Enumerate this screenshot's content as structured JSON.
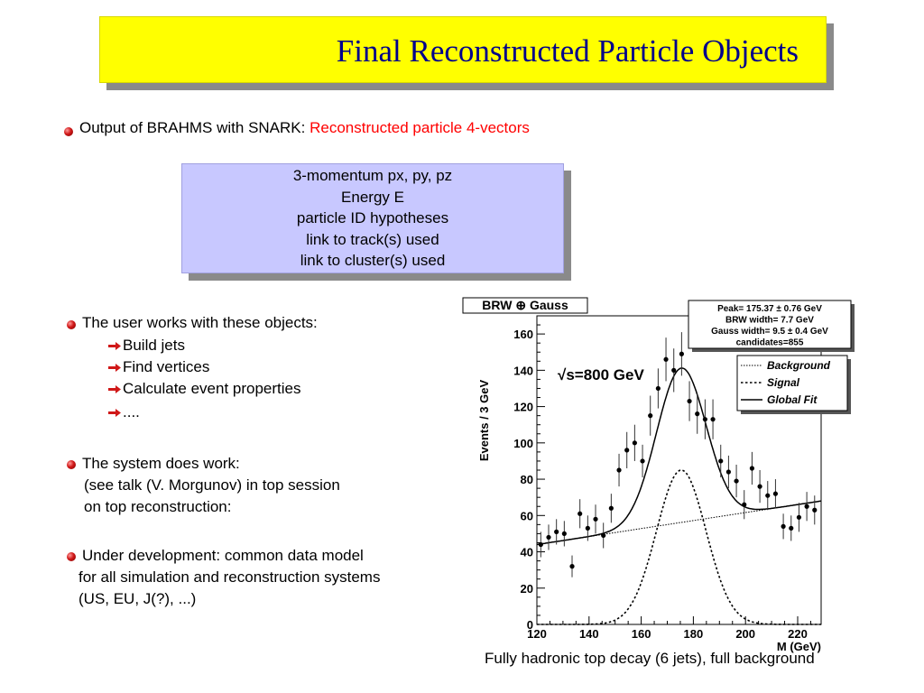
{
  "title": "Final Reconstructed Particle Objects",
  "bullet1": {
    "prefix": "Output of BRAHMS with SNARK: ",
    "highlight": "Reconstructed particle 4-vectors"
  },
  "box_lines": [
    "3-momentum   px, py, pz",
    "Energy E",
    "particle ID hypotheses",
    "link to track(s) used",
    "link to cluster(s) used"
  ],
  "bullet2": {
    "text": "The user works with these objects:",
    "items": [
      "Build jets",
      "Find vertices",
      "Calculate event properties",
      "...."
    ]
  },
  "bullet3": {
    "lines": [
      "The system does work:",
      "(see talk (V. Morgunov) in top session",
      "on top reconstruction:"
    ]
  },
  "bullet4": {
    "lines": [
      "Under development: common data model",
      "for all simulation and reconstruction systems",
      "(US, EU, J(?), ...)"
    ]
  },
  "caption": "Fully hadronic top decay (6 jets), full background",
  "colors": {
    "title_bg": "#ffff00",
    "title_text": "#00008b",
    "box_bg": "#c8c8ff",
    "highlight": "#ff0000"
  },
  "chart_data": {
    "type": "scatter",
    "title": "BRW ⊕ Gauss",
    "annotation": "√s=800 GeV",
    "xlabel": "M (GeV)",
    "ylabel": "Events / 3 GeV",
    "xlim": [
      120,
      229
    ],
    "ylim": [
      0,
      170
    ],
    "xticks": [
      120,
      140,
      160,
      180,
      200,
      220
    ],
    "yticks": [
      0,
      20,
      40,
      60,
      80,
      100,
      120,
      140,
      160
    ],
    "stats": [
      "Peak= 175.37 ± 0.76 GeV",
      "BRW   width= 7.7 GeV",
      "Gauss width= 9.5 ±  0.4 GeV",
      "candidates=855"
    ],
    "legend": [
      {
        "name": "Background",
        "style": "dotted"
      },
      {
        "name": "Signal",
        "style": "dashed"
      },
      {
        "name": "Global Fit",
        "style": "solid"
      }
    ],
    "legend_position": "top-right",
    "fit_params": {
      "peak": 175.37,
      "bkg_start": 44,
      "bkg_end": 68,
      "signal_amplitude": 85,
      "signal_sigma": 9.5
    },
    "points": {
      "x": [
        121.5,
        124.5,
        127.5,
        130.5,
        133.5,
        136.5,
        139.5,
        142.5,
        145.5,
        148.5,
        151.5,
        154.5,
        157.5,
        160.5,
        163.5,
        166.5,
        169.5,
        172.5,
        175.5,
        178.5,
        181.5,
        184.5,
        187.5,
        190.5,
        193.5,
        196.5,
        199.5,
        202.5,
        205.5,
        208.5,
        211.5,
        214.5,
        217.5,
        220.5,
        223.5,
        226.5
      ],
      "y": [
        44,
        48,
        51,
        50,
        32,
        61,
        53,
        58,
        49,
        64,
        85,
        96,
        100,
        90,
        115,
        130,
        146,
        140,
        149,
        123,
        116,
        113,
        113,
        90,
        84,
        79,
        66,
        86,
        76,
        71,
        72,
        54,
        53,
        59,
        65,
        63
      ],
      "err": [
        7,
        7,
        7,
        7,
        6,
        8,
        7,
        8,
        7,
        8,
        9,
        10,
        10,
        9,
        11,
        11,
        12,
        12,
        12,
        11,
        11,
        11,
        11,
        9,
        9,
        9,
        8,
        9,
        9,
        8,
        8,
        7,
        7,
        8,
        8,
        8
      ]
    }
  }
}
